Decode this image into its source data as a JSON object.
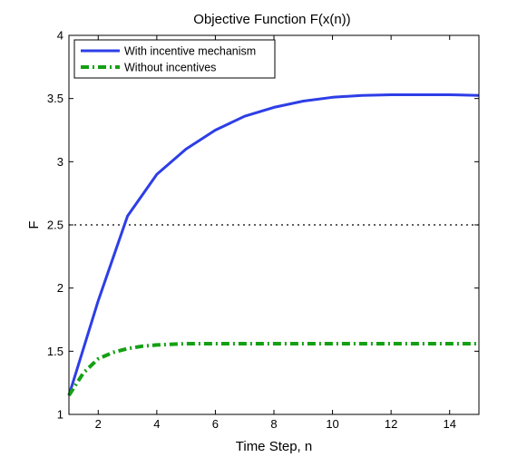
{
  "chart_data": {
    "type": "line",
    "title": "Objective Function F(x(n))",
    "xlabel": "Time Step, n",
    "ylabel": "F",
    "xlim": [
      1,
      15
    ],
    "ylim": [
      1,
      4
    ],
    "xticks": [
      2,
      4,
      6,
      8,
      10,
      12,
      14
    ],
    "yticks": [
      1,
      1.5,
      2,
      2.5,
      3,
      3.5,
      4
    ],
    "xtick_labels": [
      "2",
      "4",
      "6",
      "8",
      "10",
      "12",
      "14"
    ],
    "ytick_labels": [
      "1",
      "1.5",
      "2",
      "2.5",
      "3",
      "3.5",
      "4"
    ],
    "grid": false,
    "legend_position": "top-left",
    "reference_line": {
      "y": 2.5,
      "style": "dotted",
      "color": "#000000"
    },
    "series": [
      {
        "name": "With incentive mechanism",
        "color": "#2d3ee6",
        "style": "solid",
        "x": [
          1,
          2,
          3,
          4,
          5,
          6,
          7,
          8,
          9,
          10,
          11,
          12,
          13,
          14,
          15
        ],
        "y": [
          1.15,
          1.9,
          2.57,
          2.9,
          3.1,
          3.25,
          3.36,
          3.43,
          3.48,
          3.51,
          3.525,
          3.53,
          3.53,
          3.53,
          3.525
        ]
      },
      {
        "name": "Without incentives",
        "color": "#14a014",
        "style": "dash-dot",
        "x": [
          1,
          1.5,
          2,
          2.5,
          3,
          3.5,
          4,
          5,
          6,
          7,
          8,
          9,
          10,
          11,
          12,
          13,
          14,
          15
        ],
        "y": [
          1.15,
          1.33,
          1.44,
          1.49,
          1.52,
          1.54,
          1.55,
          1.56,
          1.56,
          1.56,
          1.56,
          1.56,
          1.56,
          1.56,
          1.56,
          1.56,
          1.56,
          1.56
        ]
      }
    ]
  }
}
